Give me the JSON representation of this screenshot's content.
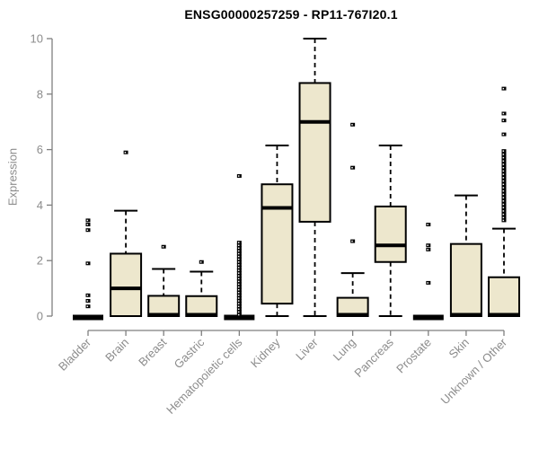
{
  "chart_data": {
    "type": "boxplot",
    "title": "ENSG00000257259 - RP11-767I20.1",
    "ylabel": "Expression",
    "xlabel": "",
    "ylim": [
      0,
      10
    ],
    "yticks": [
      0,
      2,
      4,
      6,
      8,
      10
    ],
    "grid": false,
    "legend": "none",
    "categories": [
      "Bladder",
      "Brain",
      "Breast",
      "Gastric",
      "Hematopoietic cells",
      "Kidney",
      "Liver",
      "Lung",
      "Pancreas",
      "Prostate",
      "Skin",
      "Unknown / Other"
    ],
    "boxes": [
      {
        "category": "Bladder",
        "low": 0,
        "q1": 0,
        "median": 0,
        "q3": 0,
        "high": 0,
        "outliers": [
          3.45,
          3.3,
          3.1,
          1.9,
          0.75,
          0.55,
          0.35
        ]
      },
      {
        "category": "Brain",
        "low": 0,
        "q1": 0,
        "median": 1.0,
        "q3": 2.25,
        "high": 3.8,
        "outliers": [
          5.9
        ]
      },
      {
        "category": "Breast",
        "low": 0,
        "q1": 0,
        "median": 0.05,
        "q3": 0.73,
        "high": 1.7,
        "outliers": [
          2.5
        ]
      },
      {
        "category": "Gastric",
        "low": 0,
        "q1": 0,
        "median": 0.05,
        "q3": 0.72,
        "high": 1.6,
        "outliers": [
          1.95
        ]
      },
      {
        "category": "Hematopoietic cells",
        "low": 0,
        "q1": 0,
        "median": 0,
        "q3": 0,
        "high": 0,
        "outliers": [
          5.05,
          2.65,
          2.55,
          2.45,
          2.35,
          2.25,
          2.15,
          2.05,
          1.95,
          1.85,
          1.75,
          1.65,
          1.55,
          1.45,
          1.35,
          1.25,
          1.15,
          1.05,
          0.95,
          0.85,
          0.75,
          0.65,
          0.55,
          0.45,
          0.35,
          0.25,
          0.15,
          0.05
        ]
      },
      {
        "category": "Kidney",
        "low": 0,
        "q1": 0.45,
        "median": 3.9,
        "q3": 4.75,
        "high": 6.15,
        "outliers": []
      },
      {
        "category": "Liver",
        "low": 0,
        "q1": 3.4,
        "median": 7.0,
        "q3": 8.4,
        "high": 10.0,
        "outliers": []
      },
      {
        "category": "Lung",
        "low": 0,
        "q1": 0,
        "median": 0.05,
        "q3": 0.66,
        "high": 1.55,
        "outliers": [
          6.9,
          5.35,
          2.7
        ]
      },
      {
        "category": "Pancreas",
        "low": 0,
        "q1": 1.95,
        "median": 2.55,
        "q3": 3.95,
        "high": 6.15,
        "outliers": []
      },
      {
        "category": "Prostate",
        "low": 0,
        "q1": 0,
        "median": 0,
        "q3": 0,
        "high": 0,
        "outliers": [
          3.3,
          2.55,
          2.4,
          1.2
        ]
      },
      {
        "category": "Skin",
        "low": 0,
        "q1": 0,
        "median": 0.05,
        "q3": 2.6,
        "high": 4.35,
        "outliers": []
      },
      {
        "category": "Unknown / Other",
        "low": 0,
        "q1": 0,
        "median": 0.05,
        "q3": 1.4,
        "high": 3.15,
        "outliers": [
          8.2,
          7.3,
          7.05,
          6.55,
          5.95,
          5.83,
          5.71,
          5.59,
          5.47,
          5.35,
          5.23,
          5.11,
          4.99,
          4.87,
          4.75,
          4.63,
          4.51,
          4.39,
          4.27,
          4.15,
          4.03,
          3.91,
          3.79,
          3.67,
          3.55,
          3.45
        ]
      }
    ],
    "colors": {
      "box_fill": "#EDE7CD",
      "box_border": "#000000",
      "median": "#000000",
      "outlier": "#000000",
      "axis": "#7F7F7F",
      "tick_label": "#8C8C8C",
      "title": "#000000",
      "background": "#FFFFFF"
    }
  }
}
